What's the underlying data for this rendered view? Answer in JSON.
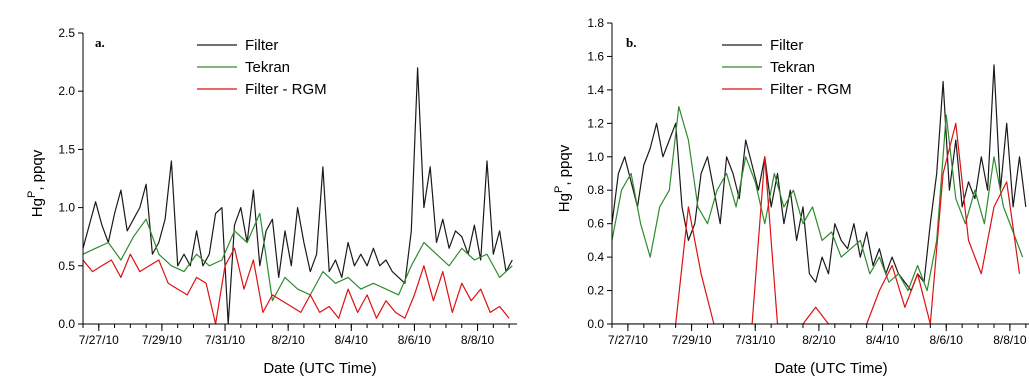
{
  "chart_data": [
    {
      "type": "line",
      "panel_label": "a.",
      "xlabel": "Date (UTC Time)",
      "ylabel": "Hg",
      "ylabel_sup": "P",
      "ylabel_unit": ", ppqv",
      "xlim": [
        0,
        13.75
      ],
      "ylim": [
        0,
        2.5
      ],
      "yticks": [
        "0.0",
        "0.5",
        "1.0",
        "1.5",
        "2.0",
        "2.5"
      ],
      "yvalues": [
        0,
        0.5,
        1.0,
        1.5,
        2.0,
        2.5
      ],
      "xtick_labels": [
        "7/27/10",
        "7/29/10",
        "7/31/10",
        "8/2/10",
        "8/4/10",
        "8/6/10",
        "8/8/10"
      ],
      "xtick_values": [
        0.5,
        2.5,
        4.5,
        6.5,
        8.5,
        10.5,
        12.5
      ],
      "series": [
        {
          "name": "Filter",
          "color": "#1a1a1a",
          "x": [
            0.0,
            0.2,
            0.4,
            0.6,
            0.8,
            1.0,
            1.2,
            1.4,
            1.6,
            1.8,
            2.0,
            2.2,
            2.4,
            2.6,
            2.8,
            3.0,
            3.2,
            3.4,
            3.6,
            3.8,
            4.0,
            4.2,
            4.4,
            4.6,
            4.8,
            5.0,
            5.2,
            5.4,
            5.6,
            5.8,
            6.0,
            6.2,
            6.4,
            6.6,
            6.8,
            7.0,
            7.2,
            7.4,
            7.6,
            7.8,
            8.0,
            8.2,
            8.4,
            8.6,
            8.8,
            9.0,
            9.2,
            9.4,
            9.6,
            9.8,
            10.0,
            10.2,
            10.4,
            10.6,
            10.8,
            11.0,
            11.2,
            11.4,
            11.6,
            11.8,
            12.0,
            12.2,
            12.4,
            12.6,
            12.8,
            13.0,
            13.2,
            13.4,
            13.6
          ],
          "values": [
            0.65,
            0.85,
            1.05,
            0.85,
            0.7,
            0.95,
            1.15,
            0.8,
            0.9,
            1.0,
            1.2,
            0.6,
            0.7,
            0.9,
            1.4,
            0.5,
            0.6,
            0.5,
            0.8,
            0.5,
            0.6,
            0.95,
            1.0,
            0.0,
            0.85,
            1.0,
            0.7,
            1.15,
            0.5,
            0.8,
            0.9,
            0.4,
            0.8,
            0.5,
            1.0,
            0.7,
            0.45,
            0.6,
            1.35,
            0.45,
            0.55,
            0.4,
            0.7,
            0.5,
            0.6,
            0.5,
            0.65,
            0.5,
            0.55,
            0.45,
            0.4,
            0.35,
            0.8,
            2.2,
            1.0,
            1.35,
            0.7,
            0.9,
            0.65,
            0.8,
            0.75,
            0.6,
            0.85,
            0.55,
            1.4,
            0.6,
            0.8,
            0.45,
            0.55
          ]
        },
        {
          "name": "Tekran",
          "color": "#2e8b2e",
          "x": [
            0.0,
            0.4,
            0.8,
            1.2,
            1.6,
            2.0,
            2.4,
            2.8,
            3.2,
            3.6,
            4.0,
            4.4,
            4.8,
            5.2,
            5.6,
            6.0,
            6.4,
            6.8,
            7.2,
            7.6,
            8.0,
            8.4,
            8.8,
            9.2,
            9.6,
            10.0,
            10.4,
            10.8,
            11.2,
            11.6,
            12.0,
            12.4,
            12.8,
            13.2,
            13.6
          ],
          "values": [
            0.6,
            0.65,
            0.7,
            0.55,
            0.75,
            0.9,
            0.6,
            0.5,
            0.45,
            0.6,
            0.5,
            0.55,
            0.8,
            0.7,
            0.95,
            0.2,
            0.4,
            0.3,
            0.25,
            0.45,
            0.35,
            0.4,
            0.3,
            0.35,
            0.3,
            0.25,
            0.5,
            0.7,
            0.6,
            0.5,
            0.65,
            0.55,
            0.6,
            0.4,
            0.5
          ]
        },
        {
          "name": "Filter - RGM",
          "color": "#dd1111",
          "x": [
            0.0,
            0.3,
            0.6,
            0.9,
            1.2,
            1.5,
            1.8,
            2.1,
            2.4,
            2.7,
            3.0,
            3.3,
            3.6,
            3.9,
            4.2,
            4.5,
            4.8,
            5.1,
            5.4,
            5.7,
            6.0,
            6.3,
            6.6,
            6.9,
            7.2,
            7.5,
            7.8,
            8.1,
            8.4,
            8.7,
            9.0,
            9.3,
            9.6,
            9.9,
            10.2,
            10.5,
            10.8,
            11.1,
            11.4,
            11.7,
            12.0,
            12.3,
            12.6,
            12.9,
            13.2,
            13.5
          ],
          "values": [
            0.55,
            0.45,
            0.5,
            0.55,
            0.4,
            0.6,
            0.45,
            0.5,
            0.55,
            0.35,
            0.3,
            0.25,
            0.4,
            0.35,
            0.0,
            0.5,
            0.65,
            0.3,
            0.55,
            0.1,
            0.25,
            0.2,
            0.15,
            0.1,
            0.25,
            0.1,
            0.15,
            0.05,
            0.3,
            0.1,
            0.25,
            0.05,
            0.2,
            0.1,
            0.05,
            0.25,
            0.5,
            0.2,
            0.45,
            0.1,
            0.35,
            0.2,
            0.3,
            0.1,
            0.15,
            0.05
          ]
        }
      ]
    },
    {
      "type": "line",
      "panel_label": "b.",
      "xlabel": "Date (UTC Time)",
      "ylabel": "Hg",
      "ylabel_sup": "P",
      "ylabel_unit": ", ppqv",
      "xlim": [
        0,
        13.1
      ],
      "ylim": [
        0,
        1.8
      ],
      "yticks": [
        "0.0",
        "0.2",
        "0.4",
        "0.6",
        "0.8",
        "1.0",
        "1.2",
        "1.4",
        "1.6",
        "1.8"
      ],
      "yvalues": [
        0,
        0.2,
        0.4,
        0.6,
        0.8,
        1.0,
        1.2,
        1.4,
        1.6,
        1.8
      ],
      "xtick_labels": [
        "7/27/10",
        "7/29/10",
        "7/31/10",
        "8/2/10",
        "8/4/10",
        "8/6/10",
        "8/8/10"
      ],
      "xtick_values": [
        0.5,
        2.5,
        4.5,
        6.5,
        8.5,
        10.5,
        12.5
      ],
      "series": [
        {
          "name": "Filter",
          "color": "#1a1a1a",
          "x": [
            0.0,
            0.2,
            0.4,
            0.6,
            0.8,
            1.0,
            1.2,
            1.4,
            1.6,
            1.8,
            2.0,
            2.2,
            2.4,
            2.6,
            2.8,
            3.0,
            3.2,
            3.4,
            3.6,
            3.8,
            4.0,
            4.2,
            4.4,
            4.6,
            4.8,
            5.0,
            5.2,
            5.4,
            5.6,
            5.8,
            6.0,
            6.2,
            6.4,
            6.6,
            6.8,
            7.0,
            7.2,
            7.4,
            7.6,
            7.8,
            8.0,
            8.2,
            8.4,
            8.6,
            8.8,
            9.0,
            9.2,
            9.4,
            9.6,
            9.8,
            10.0,
            10.2,
            10.4,
            10.6,
            10.8,
            11.0,
            11.2,
            11.4,
            11.6,
            11.8,
            12.0,
            12.2,
            12.4,
            12.6,
            12.8,
            13.0
          ],
          "values": [
            0.6,
            0.9,
            1.0,
            0.85,
            0.7,
            0.95,
            1.05,
            1.2,
            1.0,
            1.1,
            1.2,
            0.7,
            0.5,
            0.6,
            0.9,
            1.0,
            0.8,
            0.6,
            1.0,
            0.9,
            0.75,
            1.1,
            0.95,
            0.8,
            1.0,
            0.7,
            0.9,
            0.6,
            0.8,
            0.5,
            0.7,
            0.3,
            0.25,
            0.4,
            0.3,
            0.6,
            0.5,
            0.45,
            0.6,
            0.4,
            0.55,
            0.35,
            0.45,
            0.3,
            0.4,
            0.3,
            0.25,
            0.2,
            0.3,
            0.25,
            0.6,
            0.9,
            1.45,
            0.8,
            1.1,
            0.7,
            0.85,
            0.75,
            1.0,
            0.8,
            1.55,
            0.8,
            1.2,
            0.7,
            1.0,
            0.7
          ]
        },
        {
          "name": "Tekran",
          "color": "#2e8b2e",
          "x": [
            0.0,
            0.3,
            0.6,
            0.9,
            1.2,
            1.5,
            1.8,
            2.1,
            2.4,
            2.7,
            3.0,
            3.3,
            3.6,
            3.9,
            4.2,
            4.5,
            4.8,
            5.1,
            5.4,
            5.7,
            6.0,
            6.3,
            6.6,
            6.9,
            7.2,
            7.5,
            7.8,
            8.1,
            8.4,
            8.7,
            9.0,
            9.3,
            9.6,
            9.9,
            10.2,
            10.5,
            10.8,
            11.1,
            11.4,
            11.7,
            12.0,
            12.3,
            12.6,
            12.9
          ],
          "values": [
            0.5,
            0.8,
            0.9,
            0.6,
            0.4,
            0.7,
            0.8,
            1.3,
            1.1,
            0.7,
            0.6,
            0.8,
            0.9,
            0.7,
            1.0,
            0.85,
            0.6,
            0.9,
            0.7,
            0.8,
            0.6,
            0.7,
            0.5,
            0.55,
            0.4,
            0.45,
            0.5,
            0.3,
            0.4,
            0.25,
            0.3,
            0.2,
            0.35,
            0.2,
            0.5,
            1.25,
            0.75,
            0.6,
            0.8,
            0.6,
            1.0,
            0.7,
            0.55,
            0.4
          ]
        },
        {
          "name": "Filter - RGM",
          "color": "#dd1111",
          "x": [
            0.0,
            0.4,
            0.8,
            1.2,
            1.6,
            2.0,
            2.4,
            2.8,
            3.2,
            3.6,
            4.0,
            4.4,
            4.8,
            5.2,
            5.6,
            6.0,
            6.4,
            6.8,
            7.2,
            7.6,
            8.0,
            8.4,
            8.8,
            9.2,
            9.6,
            10.0,
            10.4,
            10.8,
            11.2,
            11.6,
            12.0,
            12.4,
            12.8
          ],
          "values": [
            0.0,
            0.0,
            0.0,
            0.0,
            0.0,
            0.0,
            0.7,
            0.3,
            0.0,
            0.0,
            0.0,
            0.0,
            1.0,
            0.0,
            0.0,
            0.0,
            0.1,
            0.0,
            0.0,
            0.0,
            0.0,
            0.2,
            0.35,
            0.1,
            0.3,
            0.0,
            0.9,
            1.2,
            0.5,
            0.3,
            0.7,
            0.85,
            0.3
          ]
        }
      ]
    }
  ]
}
